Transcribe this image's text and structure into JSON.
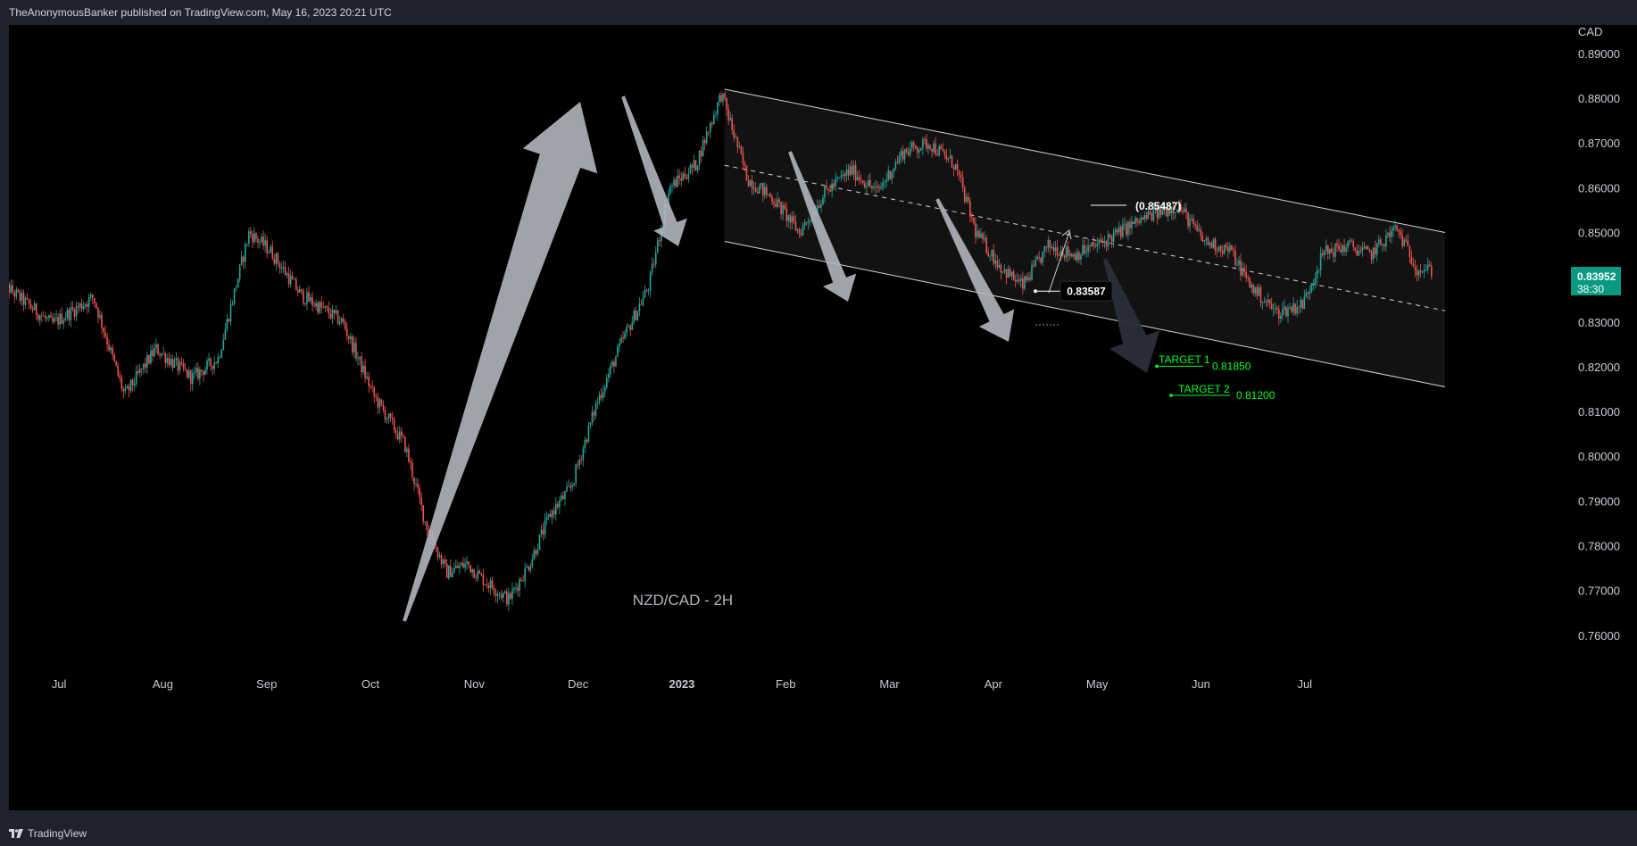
{
  "header": {
    "publisher": "TheAnonymousBanker published on TradingView.com, May 16, 2023 20:21 UTC"
  },
  "footer": {
    "brand": "TradingView",
    "logo_icon": "tradingview-logo-icon"
  },
  "colors": {
    "up": "#26a69a",
    "down": "#ef5350",
    "price_tag": "#089981",
    "target": "#00ff22",
    "arrow": "#b2b5be"
  },
  "chart_data": {
    "type": "candlestick",
    "title": "NZD/CAD - 2H",
    "currency": "CAD",
    "ylim": [
      0.755,
      0.895
    ],
    "y_ticks": [
      "0.89000",
      "0.88000",
      "0.87000",
      "0.86000",
      "0.85000",
      "0.84000",
      "0.83000",
      "0.82000",
      "0.81000",
      "0.80000",
      "0.79000",
      "0.78000",
      "0.77000",
      "0.76000"
    ],
    "x_ticks": [
      "Jul",
      "Aug",
      "Sep",
      "Oct",
      "Nov",
      "Dec",
      "2023",
      "Feb",
      "Mar",
      "Apr",
      "May",
      "Jun",
      "Jul"
    ],
    "x_tick_index": [
      0.5,
      1.5,
      2.5,
      3.5,
      4.5,
      5.5,
      6.5,
      7.5,
      8.5,
      9.5,
      10.5,
      11.5,
      12.5
    ],
    "price_path": [
      [
        0,
        0.839
      ],
      [
        0.5,
        0.8295
      ],
      [
        0.9,
        0.8355
      ],
      [
        1.2,
        0.8135
      ],
      [
        1.5,
        0.824
      ],
      [
        1.85,
        0.8175
      ],
      [
        2.1,
        0.8218
      ],
      [
        2.4,
        0.85
      ],
      [
        2.6,
        0.846
      ],
      [
        2.9,
        0.836
      ],
      [
        3.3,
        0.83
      ],
      [
        3.6,
        0.8135
      ],
      [
        3.9,
        0.8025
      ],
      [
        4.1,
        0.785
      ],
      [
        4.3,
        0.774
      ],
      [
        4.5,
        0.776
      ],
      [
        4.65,
        0.7725
      ],
      [
        4.9,
        0.768
      ],
      [
        5.1,
        0.776
      ],
      [
        5.3,
        0.787
      ],
      [
        5.5,
        0.793
      ],
      [
        5.75,
        0.812
      ],
      [
        6.0,
        0.826
      ],
      [
        6.25,
        0.838
      ],
      [
        6.45,
        0.86
      ],
      [
        6.7,
        0.865
      ],
      [
        6.95,
        0.881
      ],
      [
        7.2,
        0.862
      ],
      [
        7.45,
        0.8575
      ],
      [
        7.7,
        0.85
      ],
      [
        7.95,
        0.859
      ],
      [
        8.2,
        0.864
      ],
      [
        8.45,
        0.859
      ],
      [
        8.7,
        0.868
      ],
      [
        8.95,
        0.87
      ],
      [
        9.2,
        0.865
      ],
      [
        9.4,
        0.85
      ],
      [
        9.65,
        0.842
      ],
      [
        9.85,
        0.838
      ],
      [
        10.1,
        0.847
      ],
      [
        10.35,
        0.845
      ],
      [
        10.6,
        0.8475
      ],
      [
        10.85,
        0.851
      ],
      [
        11.1,
        0.854
      ],
      [
        11.35,
        0.856
      ],
      [
        11.6,
        0.848
      ],
      [
        11.85,
        0.846
      ],
      [
        12.05,
        0.838
      ],
      [
        12.3,
        0.832
      ],
      [
        12.55,
        0.834
      ],
      [
        12.75,
        0.8455
      ],
      [
        13.0,
        0.847
      ],
      [
        13.2,
        0.845
      ],
      [
        13.45,
        0.851
      ],
      [
        13.65,
        0.842
      ],
      [
        13.8,
        0.8415
      ]
    ],
    "channel": {
      "upper": [
        [
          6.98,
          0.882
        ],
        [
          13.92,
          0.85
        ]
      ],
      "lower": [
        [
          6.98,
          0.848
        ],
        [
          13.92,
          0.8155
        ]
      ],
      "median": [
        [
          6.98,
          0.865
        ],
        [
          13.92,
          0.8325
        ]
      ]
    },
    "annotations": [
      {
        "label": "(0.85487)",
        "value": 0.85487
      },
      {
        "label": "0.83587",
        "value": 0.83587
      }
    ],
    "targets": [
      {
        "name": "TARGET 1",
        "value": 0.8185,
        "label": "0.81850"
      },
      {
        "name": "TARGET 2",
        "value": 0.812,
        "label": "0.81200"
      }
    ],
    "last_price": {
      "value": "0.83952",
      "countdown": "38:30"
    }
  }
}
